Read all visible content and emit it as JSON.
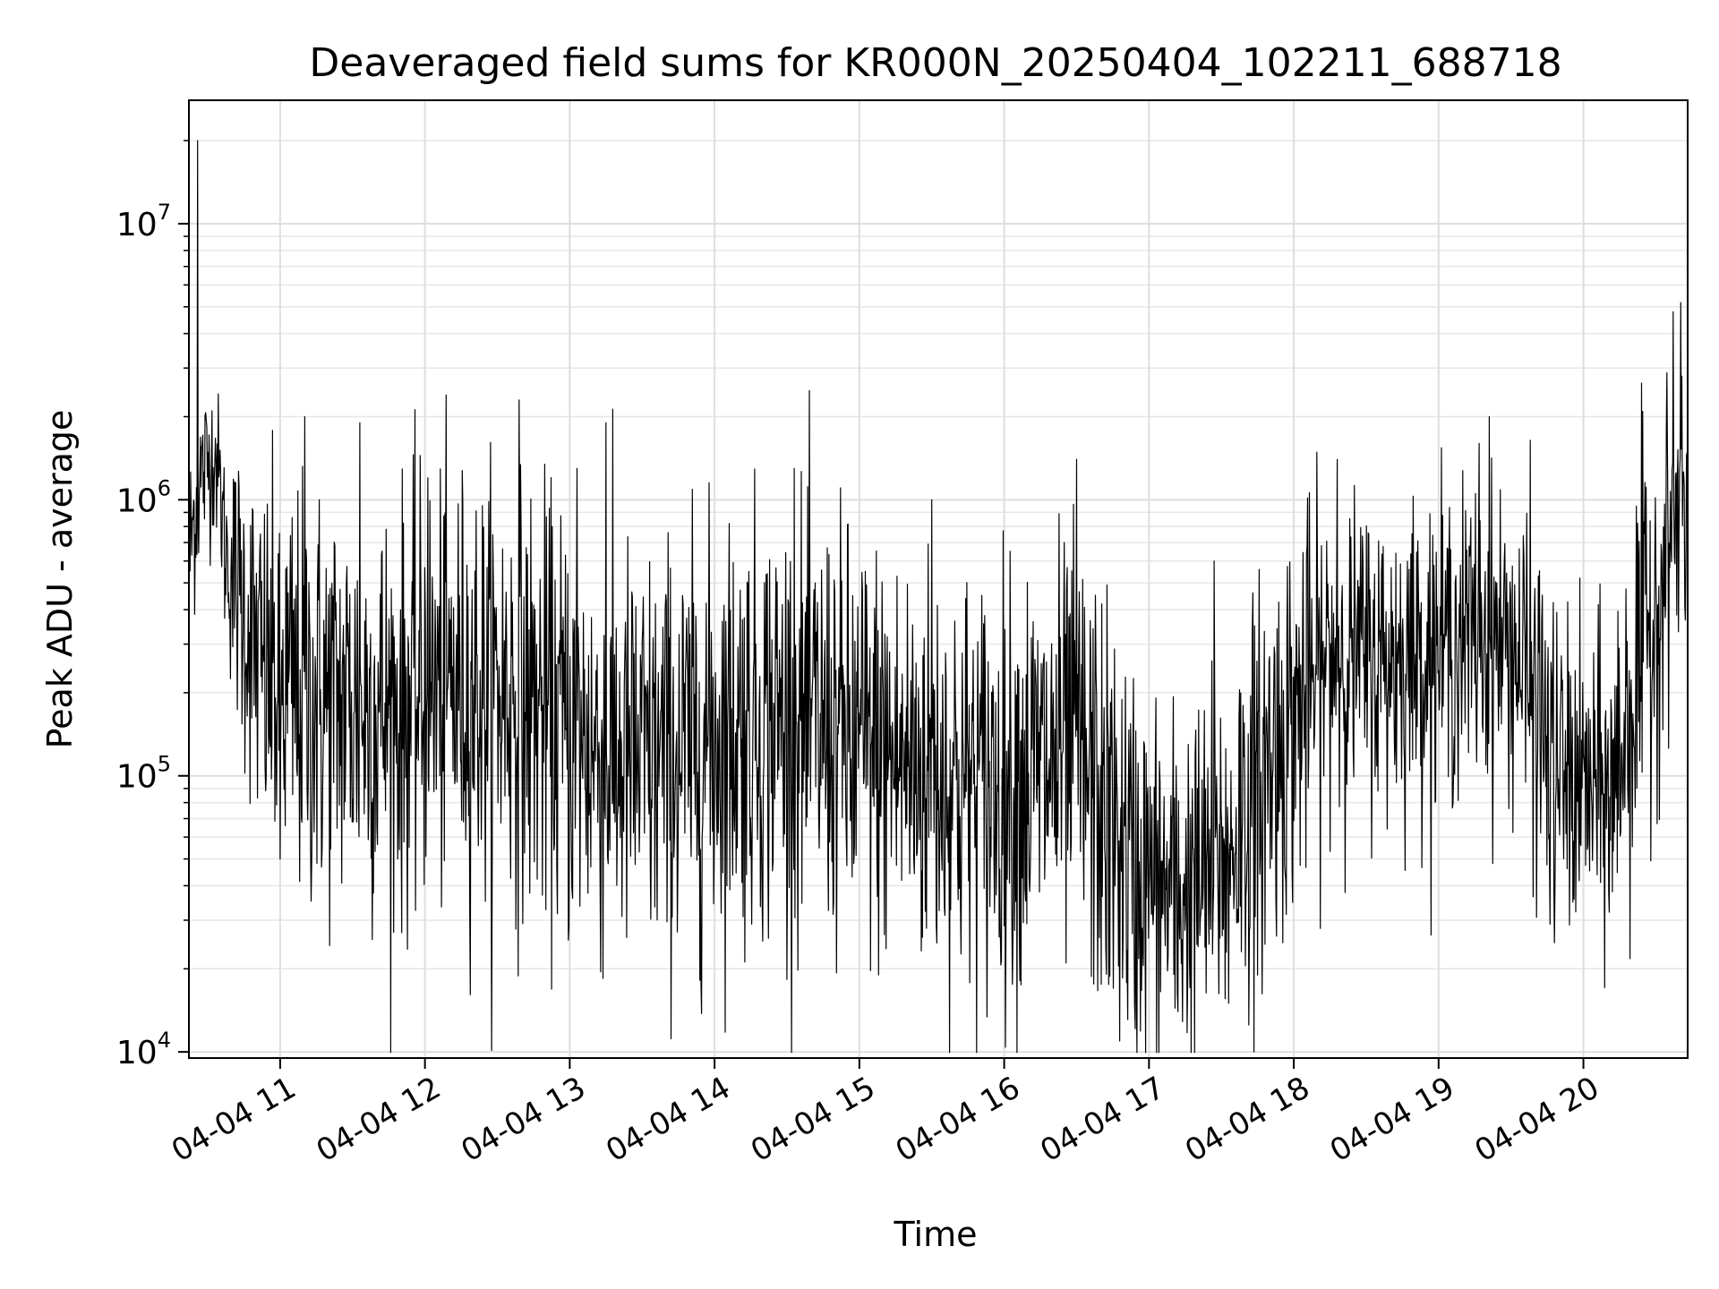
{
  "chart_data": {
    "type": "line",
    "title": "Deaveraged field sums for KR000N_20250404_102211_688718",
    "xlabel": "Time",
    "ylabel": "Peak ADU - average",
    "yscale": "log",
    "ylim": [
      9500,
      28000000
    ],
    "xlim_hours": [
      10.37,
      20.72
    ],
    "grid": true,
    "line_color": "#000000",
    "xticks": [
      {
        "hour": 11,
        "label": "04-04 11"
      },
      {
        "hour": 12,
        "label": "04-04 12"
      },
      {
        "hour": 13,
        "label": "04-04 13"
      },
      {
        "hour": 14,
        "label": "04-04 14"
      },
      {
        "hour": 15,
        "label": "04-04 15"
      },
      {
        "hour": 16,
        "label": "04-04 16"
      },
      {
        "hour": 17,
        "label": "04-04 17"
      },
      {
        "hour": 18,
        "label": "04-04 18"
      },
      {
        "hour": 19,
        "label": "04-04 19"
      },
      {
        "hour": 20,
        "label": "04-04 20"
      }
    ],
    "yticks": [
      {
        "value": 10000,
        "base": "10",
        "exp": "4"
      },
      {
        "value": 100000,
        "base": "10",
        "exp": "5"
      },
      {
        "value": 1000000,
        "base": "10",
        "exp": "6"
      },
      {
        "value": 10000000,
        "base": "10",
        "exp": "7"
      }
    ],
    "series": [
      {
        "envelope": {
          "hours": [
            10.37,
            10.45,
            10.55,
            10.62,
            10.72,
            10.85,
            11.0,
            11.2,
            11.5,
            11.8,
            12.0,
            12.3,
            12.6,
            12.9,
            13.2,
            13.5,
            13.8,
            14.1,
            14.4,
            14.7,
            15.0,
            15.3,
            15.6,
            15.9,
            16.2,
            16.5,
            16.7,
            16.9,
            17.1,
            17.3,
            17.5,
            17.7,
            17.9,
            18.1,
            18.3,
            18.6,
            18.9,
            19.2,
            19.5,
            19.65,
            19.8,
            20.0,
            20.2,
            20.35,
            20.5,
            20.6,
            20.72
          ],
          "median": [
            600000,
            1200000,
            1500000,
            650000,
            450000,
            250000,
            200000,
            190000,
            180000,
            170000,
            200000,
            210000,
            200000,
            160000,
            120000,
            110000,
            120000,
            150000,
            160000,
            150000,
            130000,
            110000,
            100000,
            90000,
            100000,
            120000,
            70000,
            45000,
            38000,
            38000,
            50000,
            80000,
            130000,
            200000,
            280000,
            260000,
            280000,
            320000,
            300000,
            200000,
            100000,
            90000,
            85000,
            200000,
            400000,
            700000,
            900000
          ],
          "spread": [
            0.35,
            0.3,
            0.25,
            0.3,
            0.5,
            0.6,
            0.7,
            0.7,
            0.7,
            0.7,
            0.7,
            0.7,
            0.7,
            0.7,
            0.7,
            0.7,
            0.7,
            0.7,
            0.7,
            0.7,
            0.7,
            0.7,
            0.7,
            0.7,
            0.7,
            0.7,
            0.7,
            0.65,
            0.6,
            0.6,
            0.6,
            0.65,
            0.65,
            0.6,
            0.5,
            0.5,
            0.5,
            0.5,
            0.5,
            0.6,
            0.55,
            0.5,
            0.55,
            0.7,
            0.6,
            0.5,
            0.5
          ]
        },
        "spikes": [
          {
            "hour": 10.43,
            "value": 20000000
          },
          {
            "hour": 11.17,
            "value": 2000000
          },
          {
            "hour": 11.55,
            "value": 1900000
          },
          {
            "hour": 12.02,
            "value": 1200000
          },
          {
            "hour": 12.65,
            "value": 2300000
          },
          {
            "hour": 13.25,
            "value": 1900000
          },
          {
            "hour": 13.05,
            "value": 1300000
          },
          {
            "hour": 14.55,
            "value": 1300000
          },
          {
            "hour": 15.5,
            "value": 1000000
          },
          {
            "hour": 16.5,
            "value": 1400000
          },
          {
            "hour": 17.45,
            "value": 600000
          },
          {
            "hour": 18.3,
            "value": 1400000
          },
          {
            "hour": 19.35,
            "value": 2000000
          },
          {
            "hour": 19.28,
            "value": 1600000
          },
          {
            "hour": 20.62,
            "value": 4800000
          },
          {
            "hour": 20.68,
            "value": 2800000
          },
          {
            "hour": 11.0,
            "value": 50000
          },
          {
            "hour": 13.02,
            "value": 36000
          },
          {
            "hour": 14.95,
            "value": 43000
          },
          {
            "hour": 16.9,
            "value": 15000
          },
          {
            "hour": 17.2,
            "value": 14000
          },
          {
            "hour": 17.55,
            "value": 15000
          },
          {
            "hour": 17.75,
            "value": 19000
          },
          {
            "hour": 19.77,
            "value": 29000
          },
          {
            "hour": 20.2,
            "value": 38000
          }
        ]
      }
    ]
  }
}
